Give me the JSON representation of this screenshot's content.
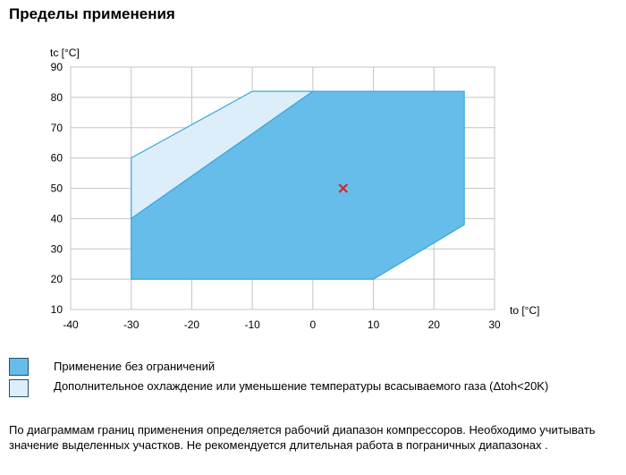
{
  "page": {
    "title": "Пределы применения"
  },
  "legend": {
    "items": [
      {
        "label": "Применение без ограничений",
        "color": "#67bde9"
      },
      {
        "label": "Дополнительное охлаждение или уменьшение температуры всасываемого газа (Δtoh<20K)",
        "color": "#dceefa"
      }
    ]
  },
  "note": {
    "text": "По диаграммам границ применения определяется рабочий диапазон компрессоров. Необходимо учитывать значение выделенных участков. Не рекомендуется длительная работа в пограничных диапазонах ."
  },
  "chart_data": {
    "type": "area",
    "xlabel": "to [°C]",
    "ylabel": "tc [°C]",
    "xlim": [
      -40,
      30
    ],
    "ylim": [
      10,
      90
    ],
    "x_ticks": [
      -40,
      -30,
      -20,
      -10,
      0,
      10,
      20,
      30
    ],
    "y_ticks": [
      10,
      20,
      30,
      40,
      50,
      60,
      70,
      80,
      90
    ],
    "grid": true,
    "series": [
      {
        "name": "Дополнительное охлаждение или уменьшение температуры всасываемого газа (Δtoh<20K)",
        "color": "#dceefa",
        "edge_color": "#3aa6da",
        "polygon": [
          [
            -30,
            40
          ],
          [
            -30,
            60
          ],
          [
            -10,
            82
          ],
          [
            0,
            82
          ]
        ]
      },
      {
        "name": "Применение без ограничений",
        "color": "#67bde9",
        "edge_color": "#3aa6da",
        "polygon": [
          [
            -30,
            20
          ],
          [
            -30,
            40
          ],
          [
            0,
            82
          ],
          [
            25,
            82
          ],
          [
            25,
            38
          ],
          [
            10,
            20
          ]
        ]
      }
    ],
    "marker": {
      "x": 5,
      "y": 50,
      "symbol": "x",
      "color": "#e02020"
    }
  }
}
